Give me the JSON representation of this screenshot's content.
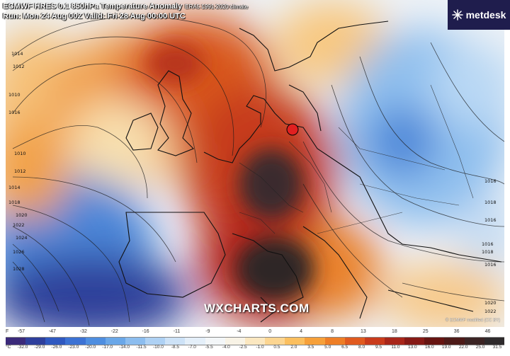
{
  "header": {
    "model_title": "ECMWF HRES 0.1 850hPa Temperature Anomaly",
    "climate_ref": "ERA5 1991-2020 climate",
    "run_line": "Run: Mon 24 Aug 00Z Valid: Fri 28 Aug 00:00 UTC"
  },
  "brand": {
    "name": "metdesk",
    "icon": "metdesk-logo-icon",
    "bg_color": "#1f1d4d"
  },
  "watermark": "WXCHARTS.COM",
  "credit": "© ECMWF modified (CC BY)",
  "map": {
    "marker": {
      "icon": "red-circle-marker",
      "color": "#e02020"
    },
    "isobars_left": [
      "1014",
      "1012",
      "1010",
      "1016",
      "1010",
      "1012",
      "1014",
      "1018",
      "1020",
      "1022",
      "1024",
      "1026",
      "1028"
    ],
    "isobars_right": [
      "1016",
      "1018",
      "1016",
      "1016",
      "1018",
      "1016",
      "1020",
      "1022"
    ]
  },
  "scale": {
    "unit_f": "F",
    "unit_c": "°C",
    "fahrenheit_ticks": [
      "-57",
      "-47",
      "-32",
      "-22",
      "-16",
      "-11",
      "-9",
      "-4",
      "0",
      "4",
      "8",
      "13",
      "18",
      "25",
      "36",
      "46"
    ],
    "celsius_ticks": [
      "-32.0",
      "-29.0",
      "-26.0",
      "-23.0",
      "-20.0",
      "-17.0",
      "-14.0",
      "-11.5",
      "-10.0",
      "-8.5",
      "-7.0",
      "-5.5",
      "-4.0",
      "-2.5",
      "-1.0",
      "0.5",
      "2.0",
      "3.5",
      "5.0",
      "6.5",
      "8.0",
      "9.5",
      "11.0",
      "13.0",
      "16.0",
      "19.0",
      "22.0",
      "25.0",
      "31.5"
    ],
    "colors": [
      "#3b2a7a",
      "#2e3f9c",
      "#2f58c0",
      "#3c72d4",
      "#4e8ee0",
      "#6aa7e8",
      "#8cbdef",
      "#aed1f4",
      "#cde2f7",
      "#e4eff9",
      "#f3f6f8",
      "#f8f3e6",
      "#fbe7c0",
      "#fcd591",
      "#fbbf5f",
      "#f6a03a",
      "#ee7e26",
      "#e05a1f",
      "#c93b1c",
      "#a8261a",
      "#861a16",
      "#661411",
      "#4d1a18",
      "#3b2424",
      "#2e2a2c"
    ]
  }
}
